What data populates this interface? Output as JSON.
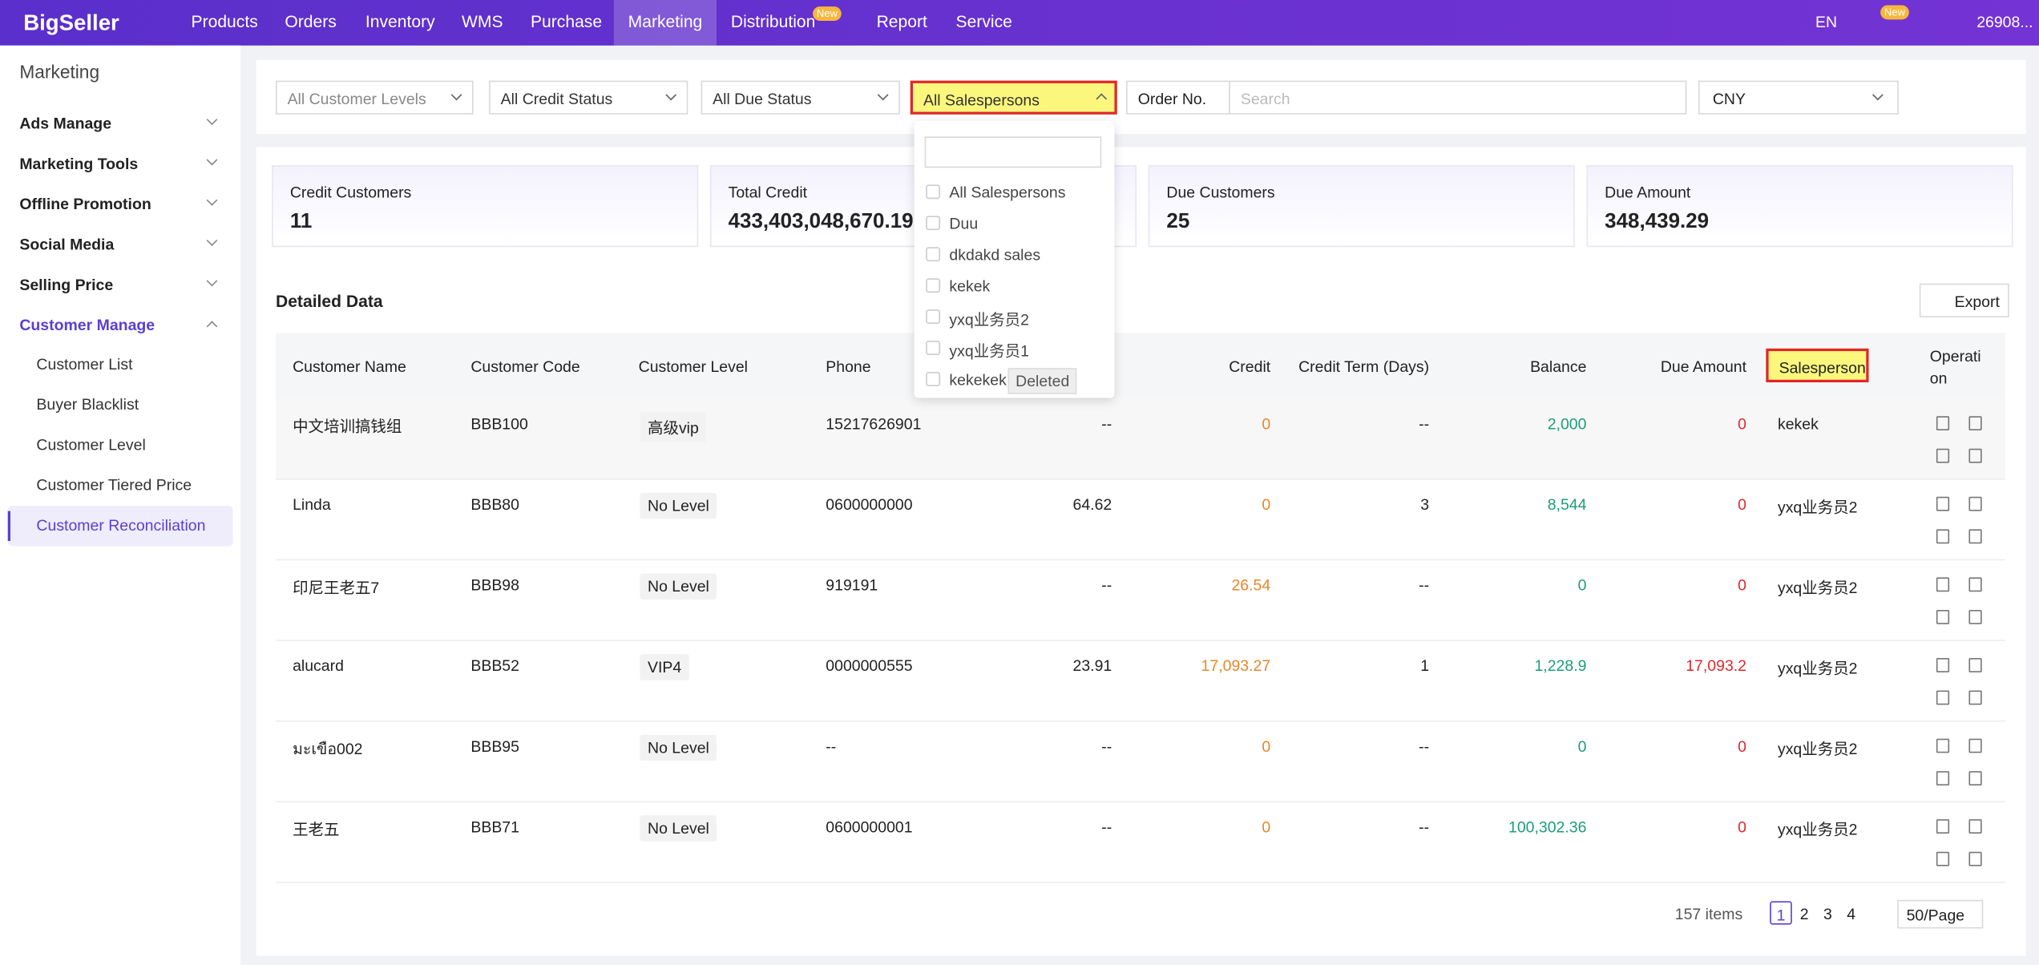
{
  "nav": {
    "logo": "BigSeller",
    "items": [
      "Products",
      "Orders",
      "Inventory",
      "WMS",
      "Purchase",
      "Marketing",
      "Distribution",
      "Report",
      "Service"
    ],
    "new_badge": "New",
    "lang": "EN",
    "bell_badge": "New",
    "user": "26908..."
  },
  "sidebar": {
    "title": "Marketing",
    "groups": [
      "Ads Manage",
      "Marketing Tools",
      "Offline Promotion",
      "Social Media",
      "Selling Price",
      "Customer Manage"
    ],
    "sub_items": [
      "Customer List",
      "Buyer Blacklist",
      "Customer Level",
      "Customer Tiered Price",
      "Customer Reconciliation"
    ]
  },
  "filters": {
    "levels": "All Customer Levels",
    "credit": "All Credit Status",
    "due": "All Due Status",
    "salespersons": "All Salespersons",
    "order_no": "Order No.",
    "search_placeholder": "Search",
    "currency": "CNY"
  },
  "dropdown": {
    "options": [
      "All Salespersons",
      "Duu",
      "dkdakd sales",
      "kekek",
      "yxq业务员2",
      "yxq业务员1",
      "kekekek"
    ],
    "deleted_tag": "Deleted"
  },
  "stats": [
    {
      "label": "Credit Customers",
      "value": "11"
    },
    {
      "label": "Total Credit",
      "value": "433,403,048,670.19"
    },
    {
      "label": "Due Customers",
      "value": "25"
    },
    {
      "label": "Due Amount",
      "value": "348,439.29"
    }
  ],
  "section_title": "Detailed Data",
  "export": "Export",
  "table": {
    "headers": [
      "Customer Name",
      "Customer Code",
      "Customer Level",
      "Phone",
      "Credit",
      "Credit Term (Days)",
      "Balance",
      "Due Amount",
      "Salesperson",
      "Operation"
    ],
    "rows": [
      [
        "中文培训搞钱组",
        "BBB100",
        "高级vip",
        "15217626901",
        "--",
        "0",
        "--",
        "2,000",
        "0",
        "kekek"
      ],
      [
        "Linda",
        "BBB80",
        "No Level",
        "0600000000",
        "64.62",
        "0",
        "3",
        "8,544",
        "0",
        "yxq业务员2"
      ],
      [
        "印尼王老五7",
        "BBB98",
        "No Level",
        "919191",
        "--",
        "26.54",
        "--",
        "0",
        "0",
        "yxq业务员2"
      ],
      [
        "alucard",
        "BBB52",
        "VIP4",
        "0000000555",
        "23.91",
        "17,093.27",
        "1",
        "1,228.9",
        "17,093.2",
        "yxq业务员2"
      ],
      [
        "มะเขือ002",
        "BBB95",
        "No Level",
        "--",
        "--",
        "0",
        "--",
        "0",
        "0",
        "yxq业务员2"
      ],
      [
        "王老五",
        "BBB71",
        "No Level",
        "0600000001",
        "--",
        "0",
        "--",
        "100,302.36",
        "0",
        "yxq业务员2"
      ]
    ]
  },
  "pagination": {
    "total": "157 items",
    "pages": [
      "1",
      "2",
      "3",
      "4"
    ],
    "page_size": "50/Page"
  }
}
